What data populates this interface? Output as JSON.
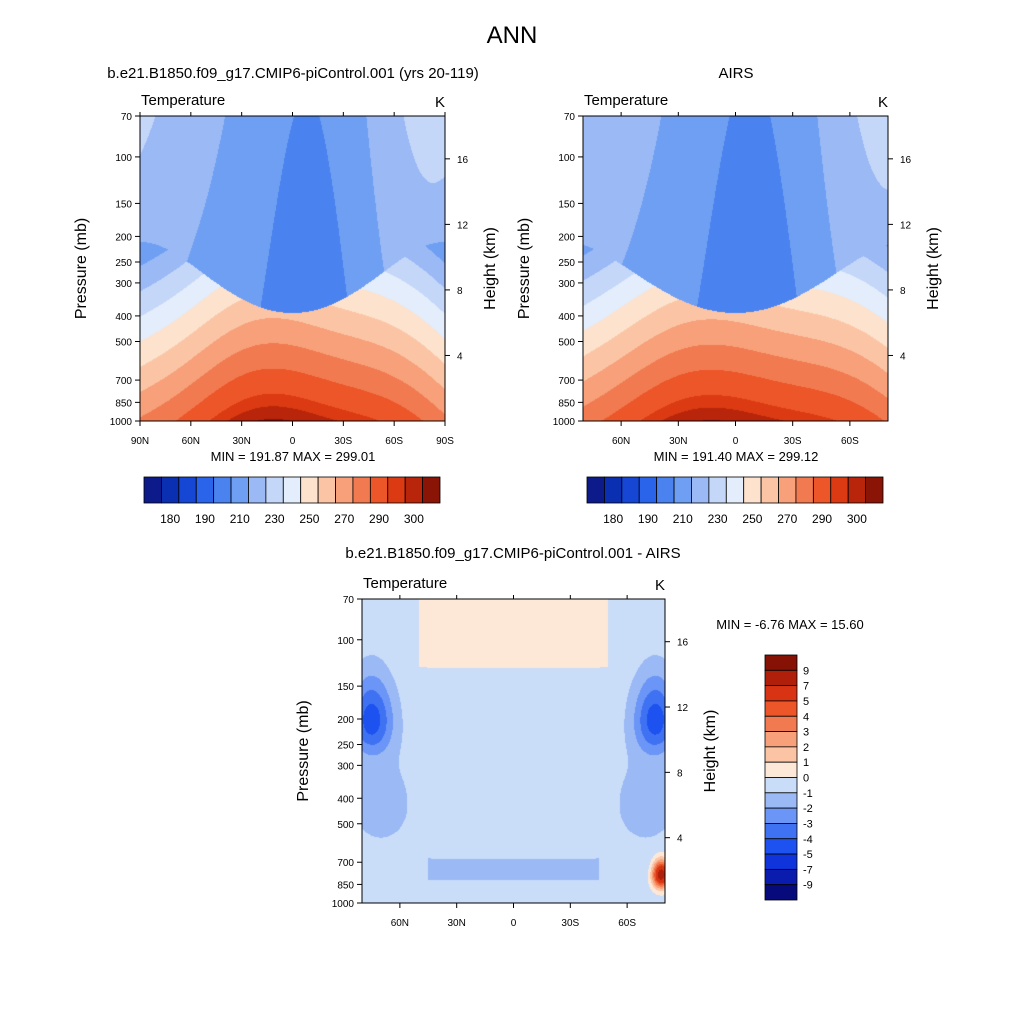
{
  "figure_title": "ANN",
  "chart_data": [
    {
      "type": "heatmap",
      "name": "model",
      "panel_title": "b.e21.B1850.f09_g17.CMIP6-piControl.001 (yrs 20-119)",
      "variable": "Temperature",
      "units": "K",
      "ylabel": "Pressure (mb)",
      "y2label": "Height (km)",
      "x_ticks": [
        "90N",
        "60N",
        "30N",
        "0",
        "30S",
        "60S",
        "90S"
      ],
      "x_tick_values": [
        90,
        60,
        30,
        0,
        -30,
        -60,
        -90
      ],
      "pressure_ticks": [
        70,
        100,
        150,
        200,
        250,
        300,
        400,
        500,
        700,
        850,
        1000
      ],
      "height_ticks": [
        4,
        8,
        12,
        16
      ],
      "stats": "MIN = 191.87  MAX = 299.01",
      "min": 191.87,
      "max": 299.01,
      "contour_levels": [
        175,
        180,
        185,
        190,
        200,
        210,
        220,
        230,
        240,
        250,
        260,
        270,
        280,
        290,
        295,
        300
      ],
      "colorbar_labels": [
        "180",
        "190",
        "210",
        "230",
        "250",
        "270",
        "290",
        "300"
      ]
    },
    {
      "type": "heatmap",
      "name": "obs",
      "panel_title": "AIRS",
      "variable": "Temperature",
      "units": "K",
      "ylabel": "Pressure (mb)",
      "y2label": "Height (km)",
      "x_ticks": [
        "60N",
        "30N",
        "0",
        "30S",
        "60S"
      ],
      "x_tick_values": [
        60,
        30,
        0,
        -30,
        -60
      ],
      "pressure_ticks": [
        70,
        100,
        150,
        200,
        250,
        300,
        400,
        500,
        700,
        850,
        1000
      ],
      "height_ticks": [
        4,
        8,
        12,
        16
      ],
      "stats": "MIN = 191.40  MAX = 299.12",
      "min": 191.4,
      "max": 299.12,
      "contour_levels": [
        175,
        180,
        185,
        190,
        200,
        210,
        220,
        230,
        240,
        250,
        260,
        270,
        280,
        290,
        295,
        300
      ],
      "colorbar_labels": [
        "180",
        "190",
        "210",
        "230",
        "250",
        "270",
        "290",
        "300"
      ]
    },
    {
      "type": "heatmap",
      "name": "diff",
      "panel_title": "b.e21.B1850.f09_g17.CMIP6-piControl.001 - AIRS",
      "variable": "Temperature",
      "units": "K",
      "ylabel": "Pressure (mb)",
      "y2label": "Height (km)",
      "x_ticks": [
        "60N",
        "30N",
        "0",
        "30S",
        "60S"
      ],
      "x_tick_values": [
        60,
        30,
        0,
        -30,
        -60
      ],
      "pressure_ticks": [
        70,
        100,
        150,
        200,
        250,
        300,
        400,
        500,
        700,
        850,
        1000
      ],
      "height_ticks": [
        4,
        8,
        12,
        16
      ],
      "stats": "MIN =  -6.76  MAX =  15.60",
      "min": -6.76,
      "max": 15.6,
      "contour_levels": [
        -9,
        -7,
        -5,
        -4,
        -3,
        -2,
        -1,
        0,
        1,
        2,
        3,
        4,
        5,
        7,
        9
      ],
      "colorbar_labels": [
        "9",
        "7",
        "5",
        "4",
        "3",
        "2",
        "1",
        "0",
        "-1",
        "-2",
        "-3",
        "-4",
        "-5",
        "-7",
        "-9"
      ]
    }
  ],
  "colors": {
    "temp_scale": [
      "#0c1a8a",
      "#0a2fb0",
      "#1546d4",
      "#2a64ea",
      "#4a83f0",
      "#6f9ff3",
      "#9ab9f5",
      "#c4d7f8",
      "#e3edfb",
      "#fde2cd",
      "#fbc5a5",
      "#f7a07a",
      "#f27a50",
      "#ec5628",
      "#db3a12",
      "#b8250b",
      "#8a1406"
    ],
    "diff_scale": [
      "#060a7a",
      "#0a1cae",
      "#0f34db",
      "#1d52f0",
      "#3f72f3",
      "#6b95f6",
      "#9ab9f5",
      "#c9dcf8",
      "#fde8d8",
      "#fbc5a5",
      "#f7a07a",
      "#f27a50",
      "#ec5628",
      "#d83414",
      "#b01f0a",
      "#861205"
    ]
  }
}
